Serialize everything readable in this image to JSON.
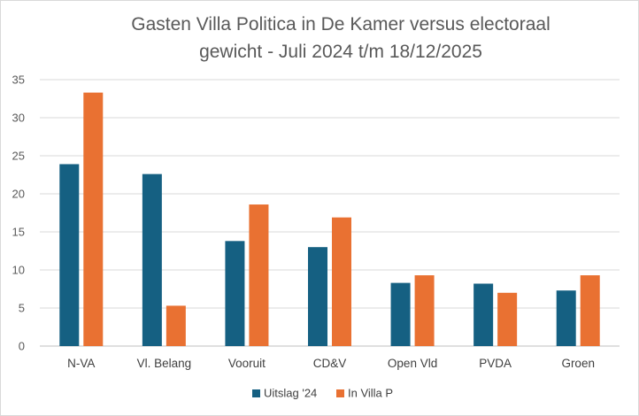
{
  "chart_data": {
    "type": "bar",
    "title_lines": [
      "Gasten Villa Politica in De Kamer versus electoraal",
      "gewicht  -  Juli 2024 t/m 18/12/2025"
    ],
    "categories": [
      "N-VA",
      "Vl. Belang",
      "Vooruit",
      "CD&V",
      "Open Vld",
      "PVDA",
      "Groen"
    ],
    "series": [
      {
        "name": "Uitslag '24",
        "color": "#156082",
        "values": [
          23.9,
          22.6,
          13.8,
          13.0,
          8.3,
          8.2,
          7.3
        ]
      },
      {
        "name": "In Villa P",
        "color": "#E97132",
        "values": [
          33.3,
          5.3,
          18.6,
          16.9,
          9.3,
          7.0,
          9.3
        ]
      }
    ],
    "yticks": [
      0,
      5,
      10,
      15,
      20,
      25,
      30,
      35
    ],
    "ylim": [
      0,
      35
    ],
    "grid": true,
    "legend_position": "bottom"
  }
}
